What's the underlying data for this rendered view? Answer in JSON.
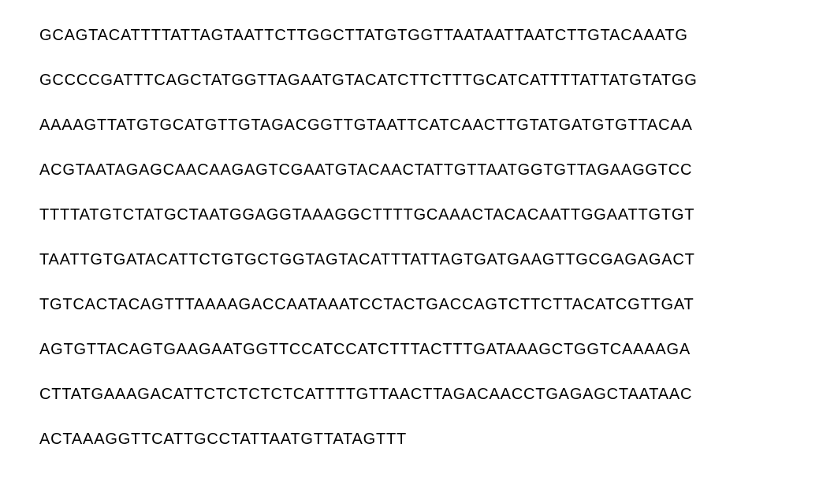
{
  "sequence": {
    "lines": [
      "GCAGTACATTTTATTAGTAATTCTTGGCTTATGTGGTTAATAATTAATCTTGTACAAATG",
      "GCCCCGATTTCAGCTATGGTTAGAATGTACATCTTCTTTGCATCATTTTATTATGTATGG",
      "AAAAGTTATGTGCATGTTGTAGACGGTTGTAATTCATCAACTTGTATGATGTGTTACAA",
      "ACGTAATAGAGCAACAAGAGTCGAATGTACAACTATTGTTAATGGTGTTAGAAGGTCC",
      "TTTTATGTCTATGCTAATGGAGGTAAAGGCTTTTGCAAACTACACAATTGGAATTGTGT",
      "TAATTGTGATACATTCTGTGCTGGTAGTACATTTATTAGTGATGAAGTTGCGAGAGACT",
      "TGTCACTACAGTTTAAAAGACCAATAAATCCTACTGACCAGTCTTCTTACATCGTTGAT",
      "AGTGTTACAGTGAAGAATGGTTCCATCCATCTTTACTTTGATAAAGCTGGTCAAAAGA",
      "CTTATGAAAGACATTCTCTCTCTCATTTTGTTAACTTAGACAACCTGAGAGCTAATAAC",
      "ACTAAAGGTTCATTGCCTATTAATGTTATAGTTT"
    ],
    "styling": {
      "font_size": 20,
      "font_weight": 300,
      "letter_spacing": 0.8,
      "line_gap": 37,
      "text_color": "#000000",
      "background_color": "#ffffff",
      "font_family": "Segoe UI, Helvetica Neue, Arial, sans-serif"
    }
  }
}
